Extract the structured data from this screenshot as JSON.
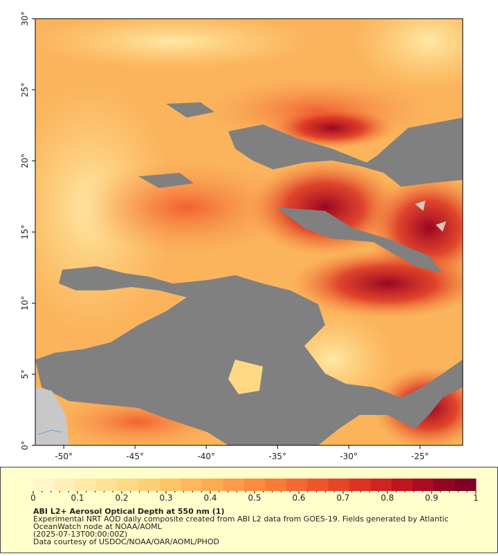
{
  "map": {
    "xlim": [
      -52,
      -22
    ],
    "ylim": [
      0,
      30
    ],
    "xticks": [
      {
        "value": -50,
        "label": "-50°"
      },
      {
        "value": -45,
        "label": "-45°"
      },
      {
        "value": -40,
        "label": "-40°"
      },
      {
        "value": -35,
        "label": "-35°"
      },
      {
        "value": -30,
        "label": "-30°"
      },
      {
        "value": -25,
        "label": "-25°"
      }
    ],
    "yticks": [
      {
        "value": 0,
        "label": "0°"
      },
      {
        "value": 5,
        "label": "5°"
      },
      {
        "value": 10,
        "label": "10°"
      },
      {
        "value": 15,
        "label": "15°"
      },
      {
        "value": 20,
        "label": "20°"
      },
      {
        "value": 25,
        "label": "25°"
      },
      {
        "value": 30,
        "label": "30°"
      }
    ]
  },
  "colorbar": {
    "range": [
      0,
      1
    ],
    "ticks": [
      0,
      0.1,
      0.2,
      0.3,
      0.4,
      0.5,
      0.6,
      0.7,
      0.8,
      0.9,
      1
    ],
    "colors": [
      "#fff6cc",
      "#fff0b8",
      "#ffe9a6",
      "#fee194",
      "#fed883",
      "#fecf74",
      "#fec466",
      "#feb75a",
      "#fdaa50",
      "#fd9b48",
      "#fc8b40",
      "#fa7a38",
      "#f66832",
      "#f0552c",
      "#e84428",
      "#de3323",
      "#d1231f",
      "#c0141f",
      "#aa0a22",
      "#940424",
      "#800026"
    ]
  },
  "footer": {
    "title": "ABI L2+ Aerosol Optical Depth at 550 nm (1)",
    "lines": [
      "Experimental NRT AOD daily composite created from ABI L2 data from GOES-19. Fields generated by Atlantic",
      "OceanWatch node at NOAA/AOML",
      "(2025-07-13T00:00:00Z)",
      "Data courtesy of USDOC/NOAA/OAR/AOML/PHOD"
    ]
  }
}
